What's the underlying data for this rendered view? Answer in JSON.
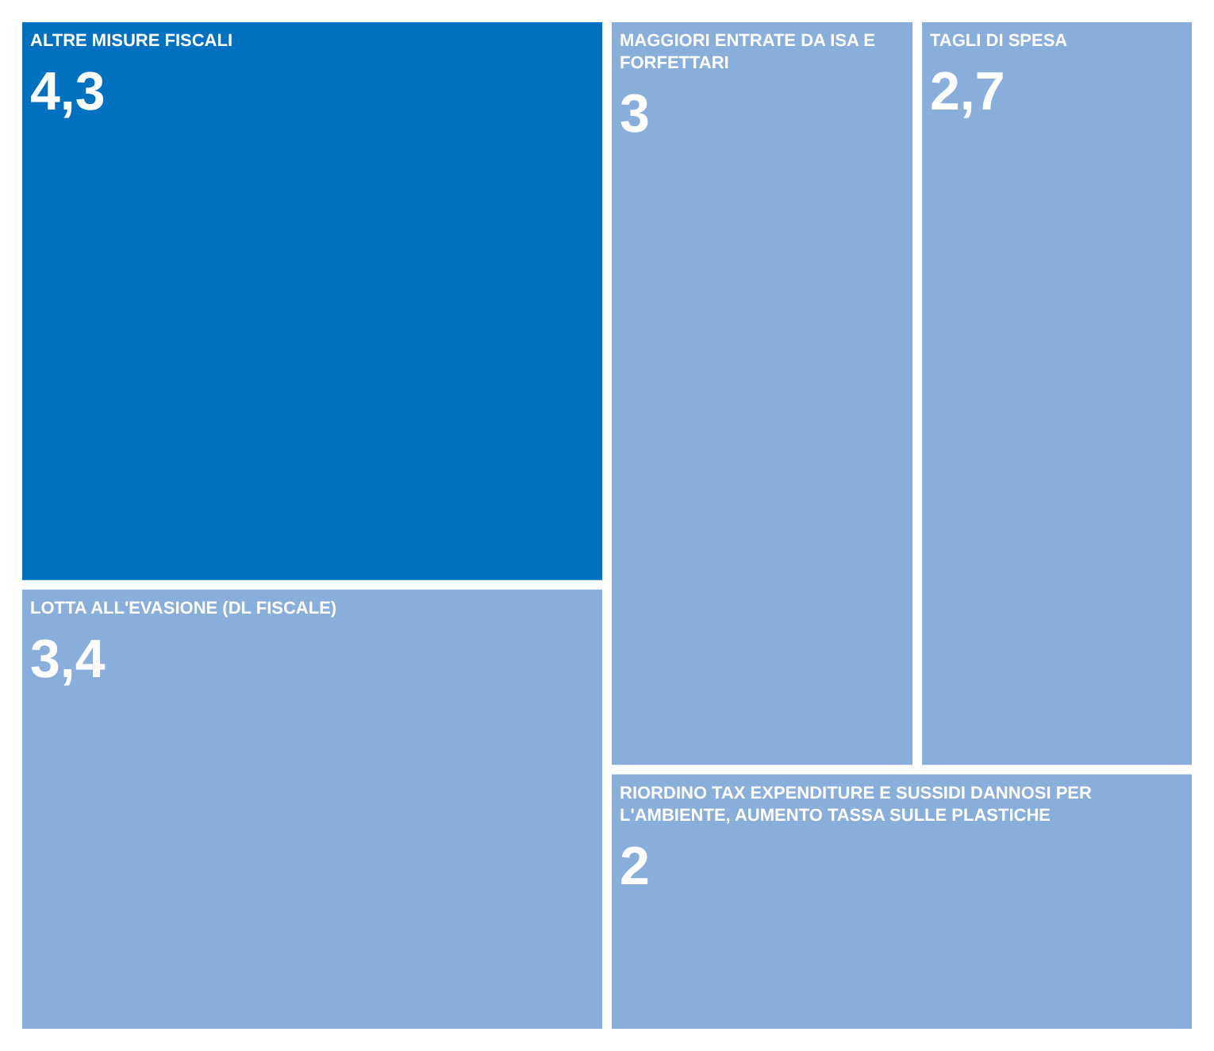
{
  "chart_data": {
    "type": "other",
    "categories": [
      "LOTTA ALL'EVASIONE (DL FISCALE)",
      "TAGLI DI SPESA",
      "ALTRE MISURE FISCALI",
      "MAGGIORI ENTRATE DA ISA E FORFETTARI",
      "RIORDINO TAX EXPENDITURE E SUSSIDI DANNOSI PER L'AMBIENTE, AUMENTO TASSA SULLE PLASTICHE"
    ],
    "values": [
      3.4,
      2.7,
      4.3,
      3,
      2
    ],
    "value_labels": [
      "3,4",
      "2,7",
      "4,3",
      "3",
      "2"
    ],
    "colors": [
      "#8aaedc",
      "#8aaedc",
      "#0070c0",
      "#8aaedc",
      "#8aaedc"
    ]
  }
}
